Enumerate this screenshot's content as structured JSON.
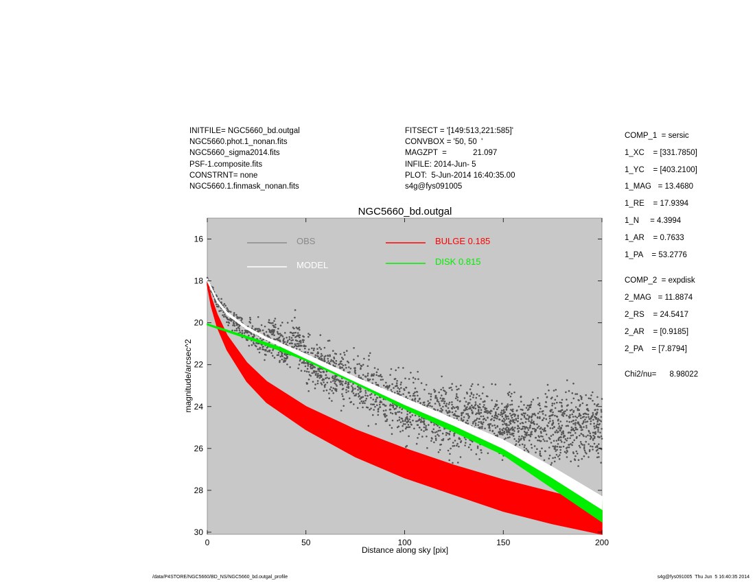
{
  "header_left": [
    "INITFILE= NGC5660_bd.outgal",
    "NGC5660.phot.1_nonan.fits",
    "NGC5660_sigma2014.fits",
    "PSF-1.composite.fits",
    "CONSTRNT= none",
    "NGC5660.1.finmask_nonan.fits"
  ],
  "header_right": [
    "FITSECT = '[149:513,221:585]'",
    "CONVBOX = '50, 50  '",
    "MAGZPT  =            21.097",
    "INFILE: 2014-Jun- 5",
    "PLOT:  5-Jun-2014 16:40:35.00",
    "s4g@fys091005"
  ],
  "params": {
    "comp1": [
      "COMP_1  = sersic",
      "1_XC    = [331.7850]",
      "1_YC    = [403.2100]",
      "1_MAG   = 13.4680",
      "1_RE    = 17.9394",
      "1_N     = 4.3994",
      "1_AR    = 0.7633",
      "1_PA    = 53.2776"
    ],
    "comp2": [
      "COMP_2  = expdisk",
      "2_MAG   = 11.8874",
      "2_RS    = 24.5417",
      "2_AR    = [0.9185]",
      "2_PA    = [7.8794]"
    ],
    "chi2": "Chi2/nu=      8.98022"
  },
  "footer_left": "/data/P4STORE/NGC5660/BD_NS/NGC5660_bd.outgal_profile",
  "footer_right": "s4g@fys091005  Thu Jun  5 16:40:35 2014",
  "chart_data": {
    "type": "scatter",
    "title": "NGC5660_bd.outgal",
    "xlabel": "Distance along sky [pix]",
    "ylabel": "magnitude/arcsec^2",
    "xlim": [
      0,
      200
    ],
    "ylim": [
      30.1,
      15.0
    ],
    "y_inverted": true,
    "xticks": [
      0,
      50,
      100,
      150,
      200
    ],
    "yticks": [
      16,
      18,
      20,
      22,
      24,
      26,
      28,
      30
    ],
    "background": "#c8c8c8",
    "legend": [
      {
        "label": "OBS",
        "color": "#8a8a8a"
      },
      {
        "label": "MODEL",
        "color": "#ffffff"
      },
      {
        "label": "BULGE  0.185",
        "color": "#ff0000"
      },
      {
        "label": "DISK  0.815",
        "color": "#00ee00"
      }
    ],
    "series": [
      {
        "name": "BULGE",
        "color": "#ff0000",
        "x": [
          0,
          2,
          5,
          10,
          20,
          30,
          50,
          75,
          100,
          125,
          150,
          175,
          200
        ],
        "y_bright": [
          18.0,
          18.8,
          19.6,
          20.6,
          21.9,
          22.8,
          24.0,
          25.1,
          26.0,
          26.8,
          27.5,
          28.1,
          28.7
        ],
        "y_faint": [
          18.2,
          19.2,
          20.2,
          21.3,
          22.8,
          23.8,
          25.1,
          26.4,
          27.4,
          28.2,
          29.0,
          29.6,
          30.1
        ]
      },
      {
        "name": "DISK",
        "color": "#00ee00",
        "x": [
          0,
          25,
          50,
          75,
          100,
          125,
          150,
          175,
          200
        ],
        "y_bright": [
          20.05,
          20.8,
          21.6,
          22.7,
          23.8,
          24.8,
          25.8,
          27.2,
          28.5
        ],
        "y_faint": [
          20.1,
          20.9,
          21.8,
          22.9,
          24.1,
          25.2,
          26.3,
          27.9,
          29.5
        ]
      },
      {
        "name": "MODEL",
        "color": "#ffffff",
        "x": [
          0,
          5,
          10,
          20,
          30,
          50,
          75,
          100,
          125,
          150,
          175,
          200
        ],
        "y_bright": [
          17.9,
          18.9,
          19.5,
          20.2,
          20.7,
          21.5,
          22.6,
          23.6,
          24.6,
          25.6,
          26.9,
          28.3
        ],
        "y_faint": [
          18.0,
          19.0,
          19.6,
          20.3,
          20.8,
          21.7,
          22.8,
          23.9,
          24.9,
          26.0,
          27.4,
          28.9
        ]
      },
      {
        "name": "OBS",
        "color": "#555555",
        "x": [
          0,
          5,
          10,
          20,
          30,
          32,
          40,
          45,
          50,
          75,
          100,
          125,
          150,
          175,
          200
        ],
        "y_median": [
          17.9,
          19.0,
          19.6,
          20.4,
          21.0,
          20.5,
          21.3,
          20.8,
          21.8,
          22.9,
          24.0,
          24.6,
          24.9,
          25.0,
          25.0
        ],
        "y_spread": [
          0.1,
          0.3,
          0.4,
          0.6,
          0.8,
          1.0,
          0.9,
          1.0,
          1.0,
          1.2,
          1.4,
          1.5,
          1.5,
          1.6,
          1.6
        ]
      }
    ]
  }
}
